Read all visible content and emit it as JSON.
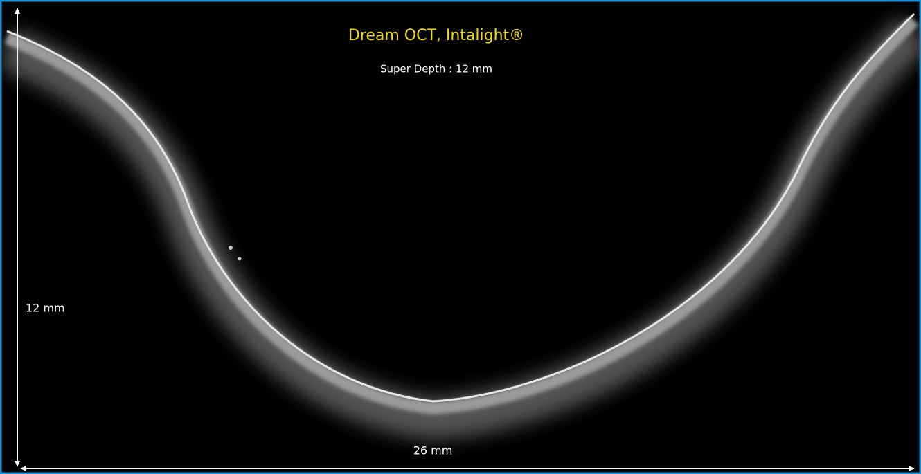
{
  "header": {
    "title": "Dream OCT, Intalight®",
    "subtitle": "Super Depth : 12 mm"
  },
  "dimensions": {
    "height_label": "12 mm",
    "width_label": "26 mm"
  }
}
